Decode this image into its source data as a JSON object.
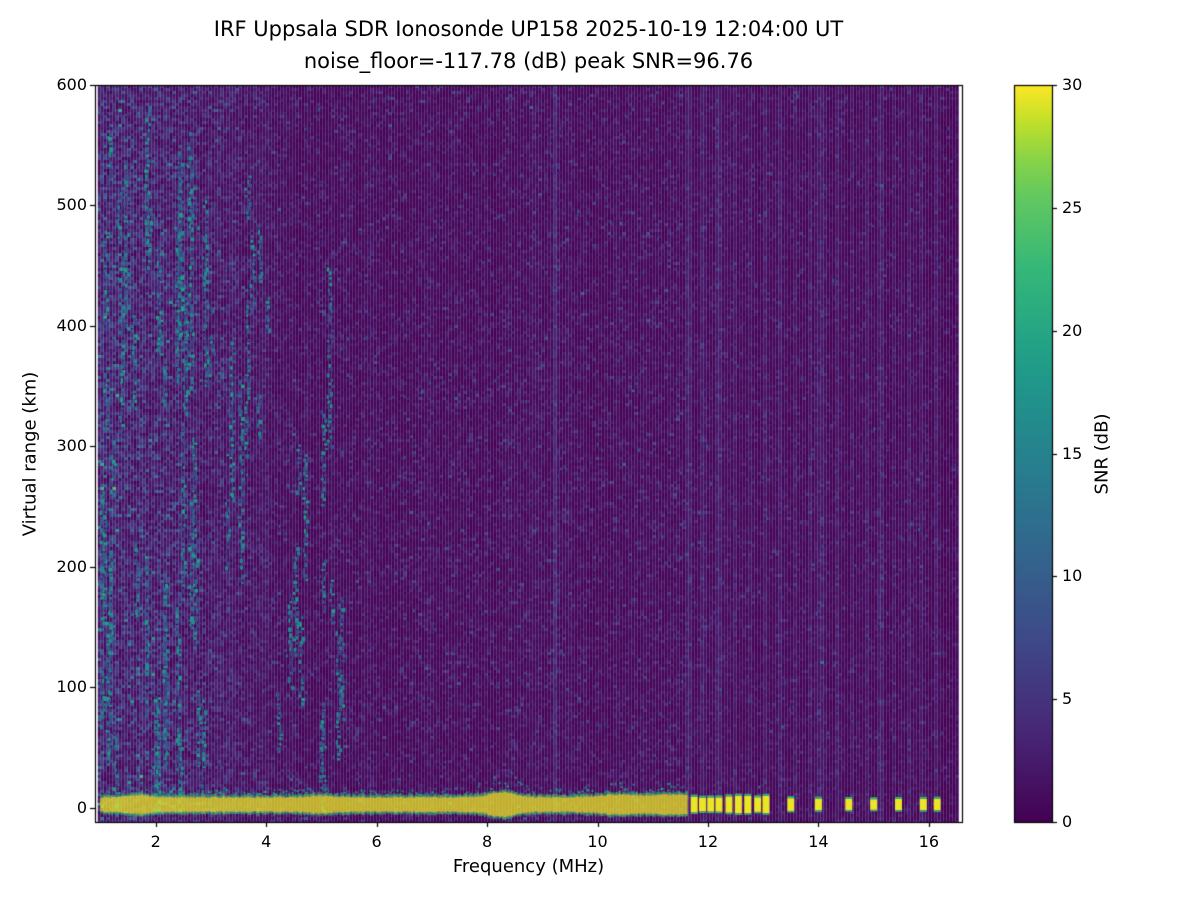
{
  "chart_data": {
    "type": "heatmap",
    "title": "IRF Uppsala SDR Ionosonde UP158 2025-10-19 12:04:00  UT",
    "subtitle": "noise_floor=-117.78 (dB) peak SNR=96.76",
    "xlabel": "Frequency (MHz)",
    "ylabel": "Virtual range (km)",
    "xlim": [
      0.9,
      16.6
    ],
    "ylim": [
      -12,
      600
    ],
    "xticks": [
      2,
      4,
      6,
      8,
      10,
      12,
      14,
      16
    ],
    "yticks": [
      0,
      100,
      200,
      300,
      400,
      500,
      600
    ],
    "noise_floor_db": -117.78,
    "peak_snr_db": 96.76,
    "colorbar": {
      "label": "SNR (dB)",
      "min": 0,
      "max": 30,
      "ticks": [
        0,
        5,
        10,
        15,
        20,
        25,
        30
      ],
      "colormap": "viridis"
    },
    "features": {
      "background_snr_db": 1,
      "data_freq_range_mhz": [
        0.95,
        16.5
      ],
      "ground_pulse": {
        "range_km": 0,
        "snr_db": 30,
        "continuous_mhz": [
          1.0,
          11.62
        ],
        "thickness_km": 12,
        "bumps_mhz": [
          1.7,
          4.95,
          8.25,
          10.35,
          11.3
        ],
        "dash_mhz": [
          11.75,
          11.9,
          12.05,
          12.2,
          12.38,
          12.55,
          12.72,
          12.9,
          13.05,
          13.5,
          14.0,
          14.55,
          15.0,
          15.45,
          15.9,
          16.15
        ]
      },
      "interference_line_mhz": 9.2,
      "noise_region": {
        "mhz": [
          0.95,
          4.6
        ],
        "description": "dense teal speckle noise with vertical streaks up to 600 km"
      },
      "slant_trace": {
        "from_mhz_km": [
          2.55,
          565
        ],
        "to_mhz_km": [
          3.6,
          185
        ]
      },
      "faint_columns_mhz": [
        11.62,
        11.9,
        12.17,
        12.45,
        12.72,
        13.0,
        13.28,
        13.55,
        13.82,
        14.02,
        14.3,
        14.6,
        14.85,
        15.1,
        15.35,
        15.6,
        15.85,
        16.1
      ]
    }
  }
}
